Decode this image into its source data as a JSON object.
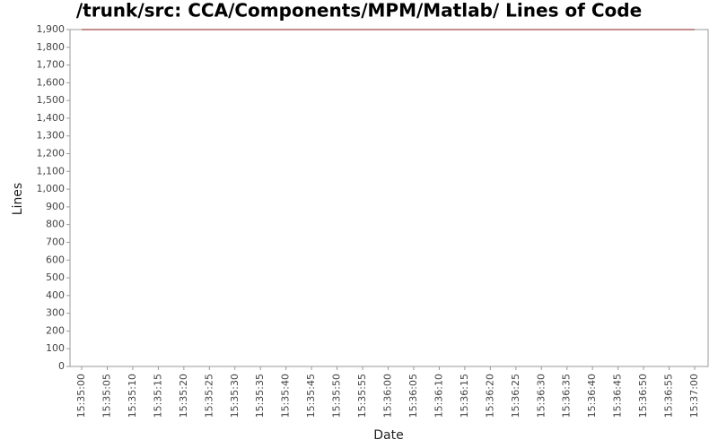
{
  "chart_data": {
    "type": "line",
    "title": "/trunk/src: CCA/Components/MPM/Matlab/ Lines of Code",
    "x_label": "Date",
    "y_label": "Lines",
    "x": [
      "15:35:00",
      "15:37:00"
    ],
    "series": [
      {
        "name": "Lines",
        "color": "#8b1a1a",
        "values": [
          1900,
          1900
        ]
      }
    ],
    "xlim": [
      "15:35:00",
      "15:37:00"
    ],
    "xticks": [
      "15:35:00",
      "15:35:05",
      "15:35:10",
      "15:35:15",
      "15:35:20",
      "15:35:25",
      "15:35:30",
      "15:35:35",
      "15:35:40",
      "15:35:45",
      "15:35:50",
      "15:35:55",
      "15:36:00",
      "15:36:05",
      "15:36:10",
      "15:36:15",
      "15:36:20",
      "15:36:25",
      "15:36:30",
      "15:36:35",
      "15:36:40",
      "15:36:45",
      "15:36:50",
      "15:36:55",
      "15:37:00"
    ],
    "ylim": [
      0,
      1900
    ],
    "yticks": [
      0,
      100,
      200,
      300,
      400,
      500,
      600,
      700,
      800,
      900,
      {
        "value": 1000,
        "label": "1,000"
      },
      {
        "value": 1100,
        "label": "1,100"
      },
      {
        "value": 1200,
        "label": "1,200"
      },
      {
        "value": 1300,
        "label": "1,300"
      },
      {
        "value": 1400,
        "label": "1,400"
      },
      {
        "value": 1500,
        "label": "1,500"
      },
      {
        "value": 1600,
        "label": "1,600"
      },
      {
        "value": 1700,
        "label": "1,700"
      },
      {
        "value": 1800,
        "label": "1,800"
      },
      {
        "value": 1900,
        "label": "1,900"
      }
    ],
    "grid": false
  }
}
